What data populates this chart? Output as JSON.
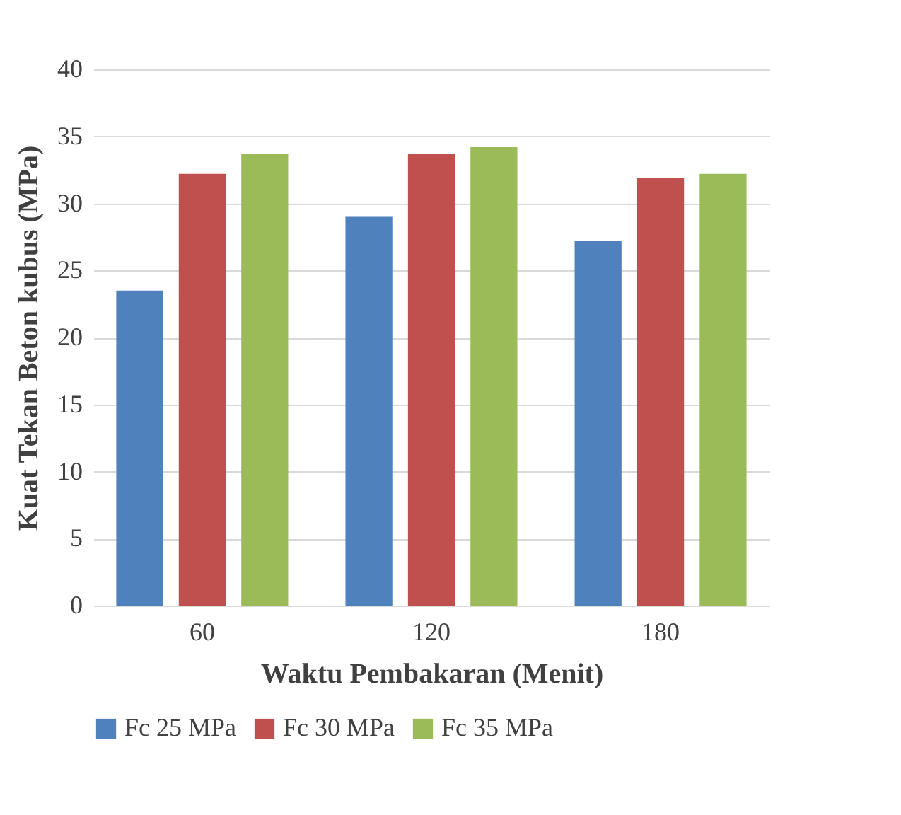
{
  "chart_data": {
    "type": "bar",
    "xlabel": "Waktu Pembakaran (Menit)",
    "ylabel": "Kuat Tekan Beton  kubus (MPa)",
    "categories": [
      "60",
      "120",
      "180"
    ],
    "series": [
      {
        "name": "Fc 25 MPa",
        "color": "#4f81bd",
        "values": [
          23.5,
          29.0,
          27.2
        ]
      },
      {
        "name": "Fc 30 MPa",
        "color": "#c0504d",
        "values": [
          32.2,
          33.7,
          31.9
        ]
      },
      {
        "name": "Fc 35 MPa",
        "color": "#9bbb59",
        "values": [
          33.7,
          34.2,
          32.2
        ]
      }
    ],
    "ylim": [
      0,
      40
    ],
    "yticks": [
      0,
      5,
      10,
      15,
      20,
      25,
      30,
      35,
      40
    ],
    "grid": "y",
    "legend": "bottom"
  }
}
